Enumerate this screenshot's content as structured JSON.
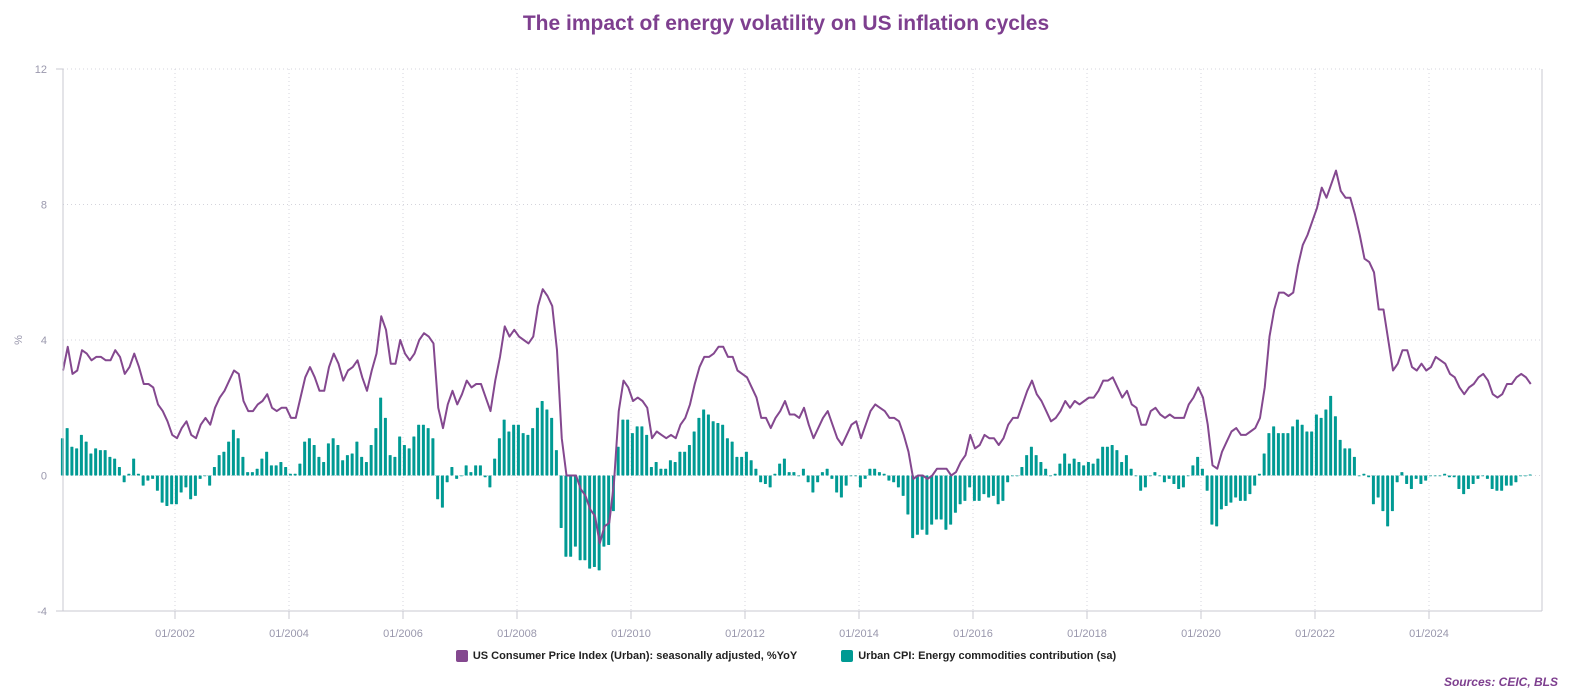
{
  "chart_data": {
    "type": "bar+line",
    "title": "The impact of energy volatility on US inflation cycles",
    "ylabel": "%",
    "ylim": [
      -4,
      12
    ],
    "yticks": [
      "-4",
      "0",
      "4",
      "8",
      "12"
    ],
    "xticks": [
      "01/2002",
      "01/2004",
      "01/2006",
      "01/2008",
      "01/2010",
      "01/2012",
      "01/2014",
      "01/2016",
      "01/2018",
      "01/2020",
      "01/2022",
      "01/2024"
    ],
    "x_start": "01/2000",
    "x_end": "11/2025",
    "frequency": "monthly",
    "grid": true,
    "legend": "bottom",
    "series": [
      {
        "name": "US Consumer Price Index (Urban): seasonally adjusted, %YoY",
        "type": "line",
        "color": "#84488f",
        "values": [
          3.1,
          3.8,
          3.0,
          3.1,
          3.7,
          3.6,
          3.4,
          3.5,
          3.5,
          3.4,
          3.4,
          3.7,
          3.5,
          3.0,
          3.2,
          3.6,
          3.2,
          2.7,
          2.7,
          2.6,
          2.1,
          1.9,
          1.6,
          1.2,
          1.1,
          1.4,
          1.6,
          1.2,
          1.1,
          1.5,
          1.7,
          1.5,
          2.0,
          2.3,
          2.5,
          2.8,
          3.1,
          3.0,
          2.2,
          1.9,
          1.9,
          2.1,
          2.2,
          2.4,
          2.0,
          1.9,
          2.0,
          2.0,
          1.7,
          1.7,
          2.3,
          2.9,
          3.2,
          2.9,
          2.5,
          2.5,
          3.2,
          3.6,
          3.3,
          2.8,
          3.1,
          3.2,
          3.4,
          2.9,
          2.5,
          3.1,
          3.6,
          4.7,
          4.3,
          3.3,
          3.3,
          4.0,
          3.6,
          3.4,
          3.6,
          4.0,
          4.2,
          4.1,
          3.9,
          2.0,
          1.4,
          2.1,
          2.5,
          2.1,
          2.4,
          2.8,
          2.6,
          2.7,
          2.7,
          2.3,
          1.9,
          2.8,
          3.5,
          4.4,
          4.1,
          4.3,
          4.1,
          4.0,
          3.9,
          4.1,
          5.0,
          5.5,
          5.3,
          5.0,
          3.7,
          1.1,
          0.0,
          0.0,
          0.0,
          -0.4,
          -0.6,
          -1.0,
          -1.2,
          -2.0,
          -1.5,
          -1.4,
          -0.2,
          1.9,
          2.8,
          2.6,
          2.2,
          2.3,
          2.2,
          2.0,
          1.1,
          1.3,
          1.2,
          1.1,
          1.2,
          1.1,
          1.5,
          1.7,
          2.1,
          2.7,
          3.2,
          3.5,
          3.5,
          3.6,
          3.8,
          3.8,
          3.5,
          3.5,
          3.1,
          3.0,
          2.9,
          2.6,
          2.3,
          1.7,
          1.7,
          1.4,
          1.7,
          1.9,
          2.2,
          1.8,
          1.8,
          1.7,
          2.0,
          1.5,
          1.1,
          1.4,
          1.7,
          1.9,
          1.5,
          1.1,
          0.9,
          1.2,
          1.5,
          1.6,
          1.1,
          1.5,
          1.9,
          2.1,
          2.0,
          1.9,
          1.7,
          1.7,
          1.6,
          1.2,
          0.7,
          -0.1,
          0.0,
          0.0,
          -0.1,
          0.0,
          0.2,
          0.2,
          0.2,
          0.0,
          0.1,
          0.4,
          0.6,
          1.2,
          0.8,
          0.9,
          1.2,
          1.1,
          1.1,
          0.9,
          1.1,
          1.5,
          1.7,
          1.7,
          2.1,
          2.5,
          2.8,
          2.4,
          2.2,
          1.9,
          1.6,
          1.7,
          1.9,
          2.2,
          2.0,
          2.2,
          2.1,
          2.2,
          2.3,
          2.3,
          2.5,
          2.8,
          2.8,
          2.9,
          2.6,
          2.3,
          2.5,
          2.1,
          2.0,
          1.5,
          1.5,
          1.9,
          2.0,
          1.8,
          1.7,
          1.8,
          1.7,
          1.7,
          1.7,
          2.1,
          2.3,
          2.6,
          2.3,
          1.5,
          0.3,
          0.2,
          0.7,
          1.0,
          1.3,
          1.4,
          1.2,
          1.2,
          1.3,
          1.4,
          1.7,
          2.6,
          4.1,
          4.9,
          5.4,
          5.4,
          5.3,
          5.4,
          6.2,
          6.8,
          7.1,
          7.5,
          7.9,
          8.5,
          8.2,
          8.6,
          9.0,
          8.4,
          8.2,
          8.2,
          7.7,
          7.1,
          6.4,
          6.3,
          6.0,
          4.9,
          4.9,
          4.0,
          3.1,
          3.3,
          3.7,
          3.7,
          3.2,
          3.1,
          3.3,
          3.1,
          3.2,
          3.5,
          3.4,
          3.3,
          3.0,
          2.9,
          2.6,
          2.4,
          2.6,
          2.7,
          2.9,
          3.0,
          2.8,
          2.4,
          2.3,
          2.4,
          2.7,
          2.7,
          2.9,
          3.0,
          2.9,
          2.7
        ]
      },
      {
        "name": "Urban CPI: Energy commodities contribution (sa)",
        "type": "bar",
        "color": "#009a93",
        "values": [
          1.1,
          1.4,
          0.85,
          0.8,
          1.2,
          1.0,
          0.65,
          0.8,
          0.75,
          0.75,
          0.55,
          0.5,
          0.25,
          -0.2,
          0.05,
          0.5,
          0.05,
          -0.3,
          -0.15,
          -0.1,
          -0.45,
          -0.8,
          -0.9,
          -0.85,
          -0.85,
          -0.5,
          -0.35,
          -0.7,
          -0.6,
          -0.1,
          0.0,
          -0.3,
          0.25,
          0.6,
          0.7,
          1.0,
          1.35,
          1.1,
          0.55,
          0.1,
          0.1,
          0.2,
          0.5,
          0.7,
          0.3,
          0.3,
          0.4,
          0.25,
          0.05,
          0.05,
          0.35,
          1.0,
          1.1,
          0.9,
          0.55,
          0.4,
          0.95,
          1.1,
          0.9,
          0.45,
          0.6,
          0.65,
          1.0,
          0.55,
          0.4,
          0.9,
          1.4,
          2.3,
          1.7,
          0.6,
          0.55,
          1.15,
          0.9,
          0.8,
          1.15,
          1.5,
          1.5,
          1.4,
          1.1,
          -0.7,
          -0.95,
          -0.2,
          0.25,
          -0.1,
          0.0,
          0.3,
          0.1,
          0.3,
          0.3,
          -0.05,
          -0.35,
          0.5,
          1.1,
          1.65,
          1.3,
          1.5,
          1.5,
          1.25,
          1.2,
          1.4,
          2.0,
          2.2,
          1.95,
          1.7,
          0.75,
          -1.55,
          -2.4,
          -2.4,
          -2.1,
          -2.5,
          -2.5,
          -2.75,
          -2.7,
          -2.8,
          -2.1,
          -2.05,
          -1.05,
          0.85,
          1.65,
          1.65,
          1.25,
          1.45,
          1.45,
          1.2,
          0.25,
          0.4,
          0.2,
          0.2,
          0.45,
          0.4,
          0.7,
          0.7,
          0.9,
          1.3,
          1.7,
          1.95,
          1.8,
          1.6,
          1.55,
          1.5,
          1.1,
          1.0,
          0.55,
          0.55,
          0.7,
          0.45,
          0.2,
          -0.2,
          -0.25,
          -0.35,
          0.05,
          0.35,
          0.5,
          0.1,
          0.1,
          0.0,
          0.2,
          -0.2,
          -0.5,
          -0.2,
          0.1,
          0.2,
          -0.1,
          -0.5,
          -0.65,
          -0.3,
          0.0,
          0.0,
          -0.35,
          -0.1,
          0.2,
          0.2,
          0.1,
          0.05,
          -0.15,
          -0.2,
          -0.35,
          -0.6,
          -1.15,
          -1.85,
          -1.75,
          -1.6,
          -1.75,
          -1.45,
          -1.3,
          -1.3,
          -1.6,
          -1.45,
          -1.1,
          -0.85,
          -0.75,
          -0.35,
          -0.75,
          -0.75,
          -0.55,
          -0.65,
          -0.6,
          -0.85,
          -0.75,
          -0.2,
          0.0,
          0.0,
          0.25,
          0.6,
          0.85,
          0.6,
          0.4,
          0.2,
          0.0,
          0.05,
          0.35,
          0.65,
          0.35,
          0.5,
          0.4,
          0.3,
          0.4,
          0.35,
          0.5,
          0.85,
          0.85,
          0.9,
          0.75,
          0.4,
          0.6,
          0.2,
          0.0,
          -0.45,
          -0.35,
          0.0,
          0.1,
          0.0,
          -0.2,
          -0.1,
          -0.25,
          -0.4,
          -0.35,
          0.0,
          0.3,
          0.55,
          0.2,
          -0.45,
          -1.45,
          -1.5,
          -1.0,
          -0.9,
          -0.8,
          -0.65,
          -0.75,
          -0.75,
          -0.55,
          -0.3,
          0.05,
          0.65,
          1.25,
          1.45,
          1.25,
          1.25,
          1.25,
          1.45,
          1.65,
          1.5,
          1.3,
          1.3,
          1.8,
          1.7,
          1.95,
          2.35,
          1.75,
          1.05,
          0.8,
          0.8,
          0.55,
          0.0,
          0.05,
          -0.05,
          -0.85,
          -0.65,
          -1.05,
          -1.5,
          -1.05,
          -0.2,
          0.1,
          -0.25,
          -0.4,
          -0.1,
          -0.25,
          -0.15,
          0.0,
          0.0,
          0.0,
          0.05,
          -0.05,
          -0.05,
          -0.4,
          -0.55,
          -0.4,
          -0.25,
          -0.1,
          0.0,
          -0.1,
          -0.4,
          -0.45,
          -0.45,
          -0.3,
          -0.3,
          -0.2,
          0.0,
          0.0,
          0.03
        ]
      }
    ]
  },
  "legend": {
    "line_label": "US Consumer Price Index (Urban): seasonally adjusted, %YoY",
    "bar_label": "Urban CPI: Energy commodities contribution (sa)"
  },
  "sources": "Sources: CEIC, BLS"
}
